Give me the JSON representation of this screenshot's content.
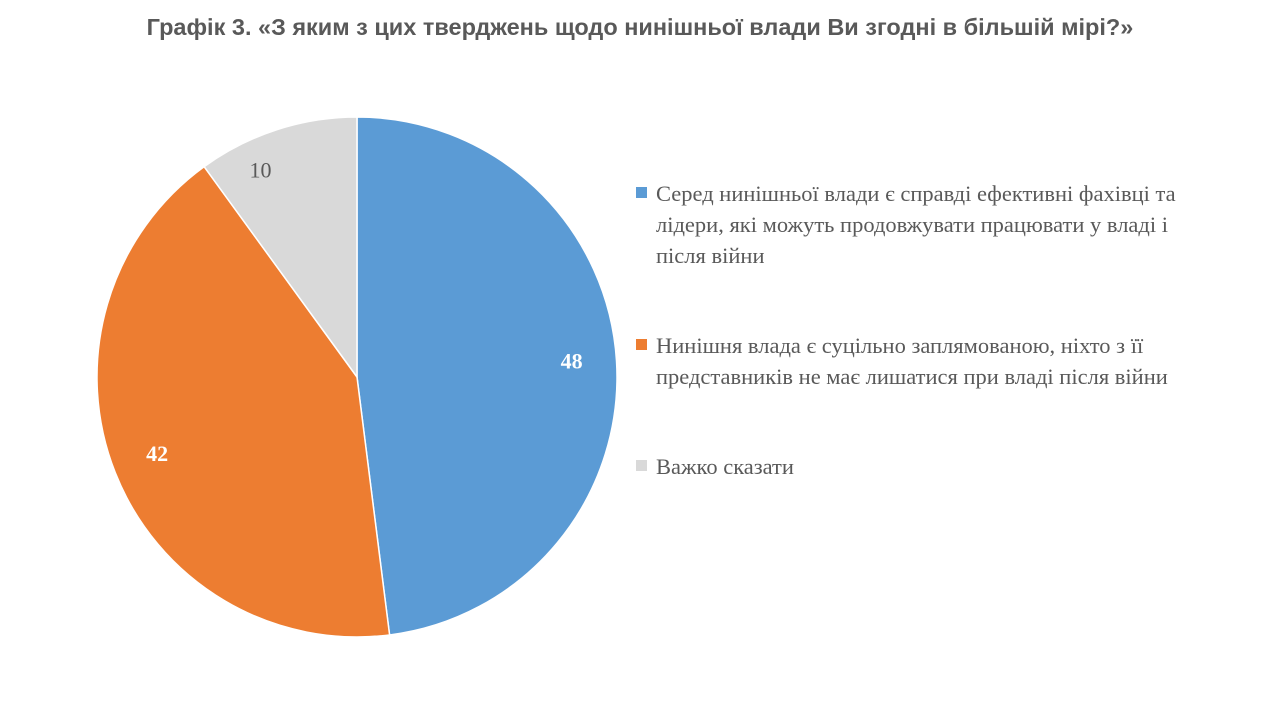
{
  "title": "Графік 3. «З яким з цих тверджень щодо нинішньої влади Ви згодні в більшій мірі?»",
  "chart_data": {
    "type": "pie",
    "title": "Графік 3. «З яким з цих тверджень щодо нинішньої влади Ви згодні в більшій мірі?»",
    "slices": [
      {
        "label": "Серед нинішньої влади є справді ефективні фахівці та лідери, які можуть продовжувати працювати у владі і після війни",
        "value": 48,
        "color": "#5b9bd5",
        "label_color": "#ffffff"
      },
      {
        "label": "Нинішня влада є суцільно заплямованою, ніхто з її представників не має лишатися при владі після війни",
        "value": 42,
        "color": "#ed7d31",
        "label_color": "#ffffff"
      },
      {
        "label": "Важко сказати",
        "value": 10,
        "color": "#d9d9d9",
        "label_color": "#595959"
      }
    ],
    "legend_position": "right"
  }
}
